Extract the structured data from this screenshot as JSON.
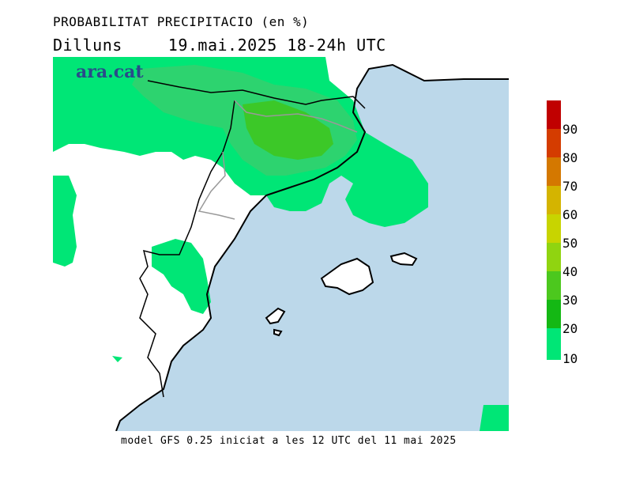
{
  "title": {
    "line1": "PROBABILITAT PRECIPITACIO (en %)",
    "day": "Dilluns",
    "date_time": "19.mai.2025 18-24h UTC"
  },
  "logo": "ara.cat",
  "footer": "model GFS 0.25 iniciat a les 12 UTC del 11 mai 2025",
  "legend": {
    "labels": [
      "10",
      "20",
      "30",
      "40",
      "50",
      "60",
      "70",
      "80",
      "90"
    ],
    "colors": [
      "#00e676",
      "#00d040",
      "#14b814",
      "#4cc81e",
      "#90d410",
      "#c8d400",
      "#d4b400",
      "#d47800",
      "#d43c00",
      "#c00000"
    ]
  },
  "colors": {
    "sea": "#bcd8ea",
    "land": "#ffffff",
    "low": "#00e676",
    "mid": "#2dd36f",
    "high": "#3cc828"
  }
}
